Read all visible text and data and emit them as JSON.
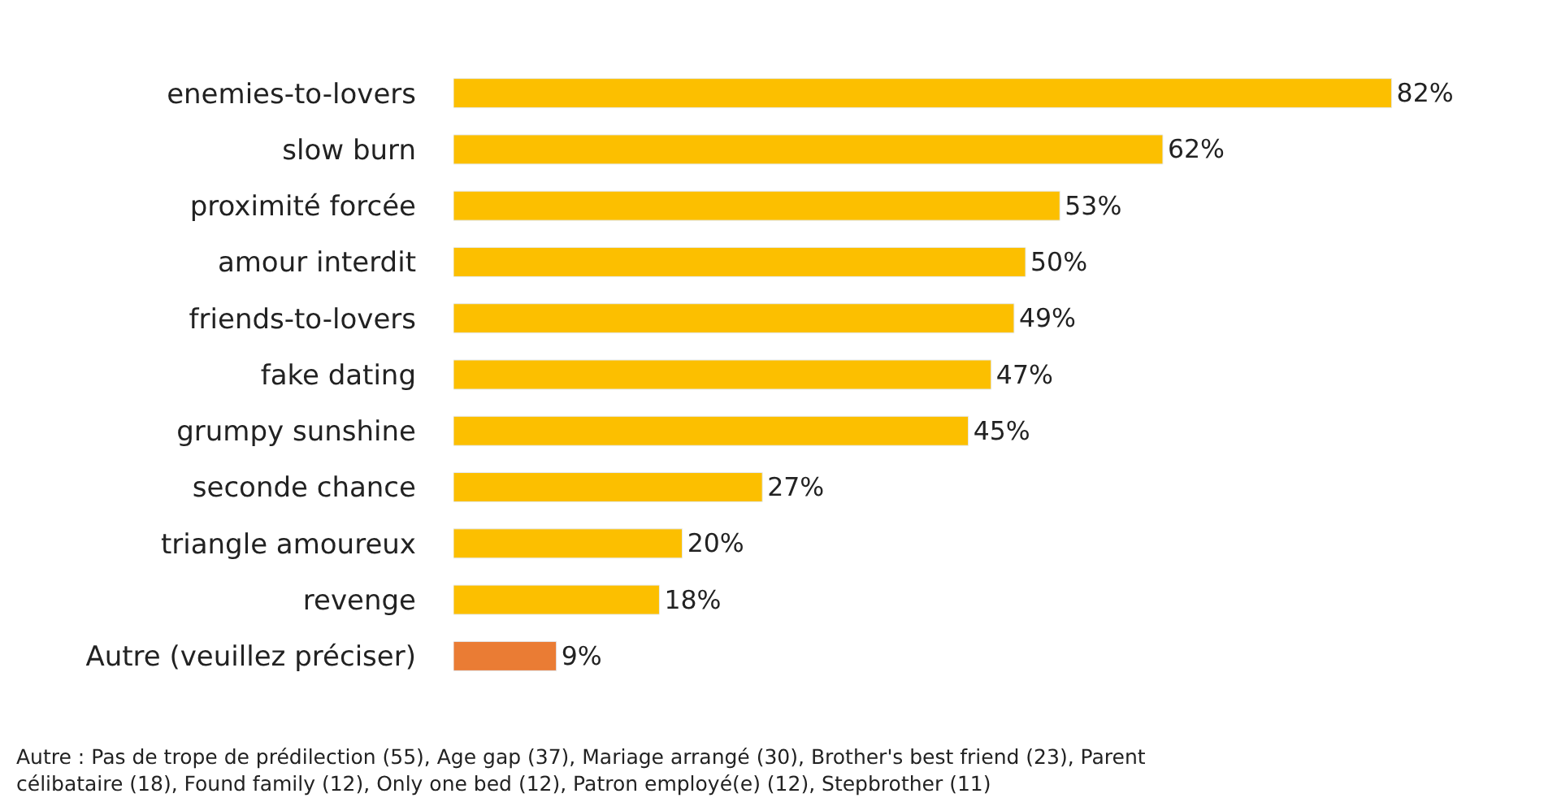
{
  "chart_data": {
    "type": "bar",
    "orientation": "horizontal",
    "categories": [
      "enemies-to-lovers",
      "slow burn",
      "proximité forcée",
      "amour interdit",
      "friends-to-lovers",
      "fake dating",
      "grumpy sunshine",
      "seconde chance",
      "triangle amoureux",
      "revenge",
      "Autre (veuillez préciser)"
    ],
    "values": [
      82,
      62,
      53,
      50,
      49,
      47,
      45,
      27,
      20,
      18,
      9
    ],
    "colors": [
      "#fcbf00",
      "#fcbf00",
      "#fcbf00",
      "#fcbf00",
      "#fcbf00",
      "#fcbf00",
      "#fcbf00",
      "#fcbf00",
      "#fcbf00",
      "#fcbf00",
      "#ea7c34"
    ],
    "value_labels": [
      "82%",
      "62%",
      "53%",
      "50%",
      "49%",
      "47%",
      "45%",
      "27%",
      "20%",
      "18%",
      "9%"
    ],
    "annotations": [
      "Autre : Pas de trope de prédilection (55), Age gap (37), Mariage arrangé (30), Brother's best friend (23), Parent célibataire (18), Found family (12), Only one bed (12), Patron employé(e) (12), Stepbrother (11)"
    ]
  }
}
